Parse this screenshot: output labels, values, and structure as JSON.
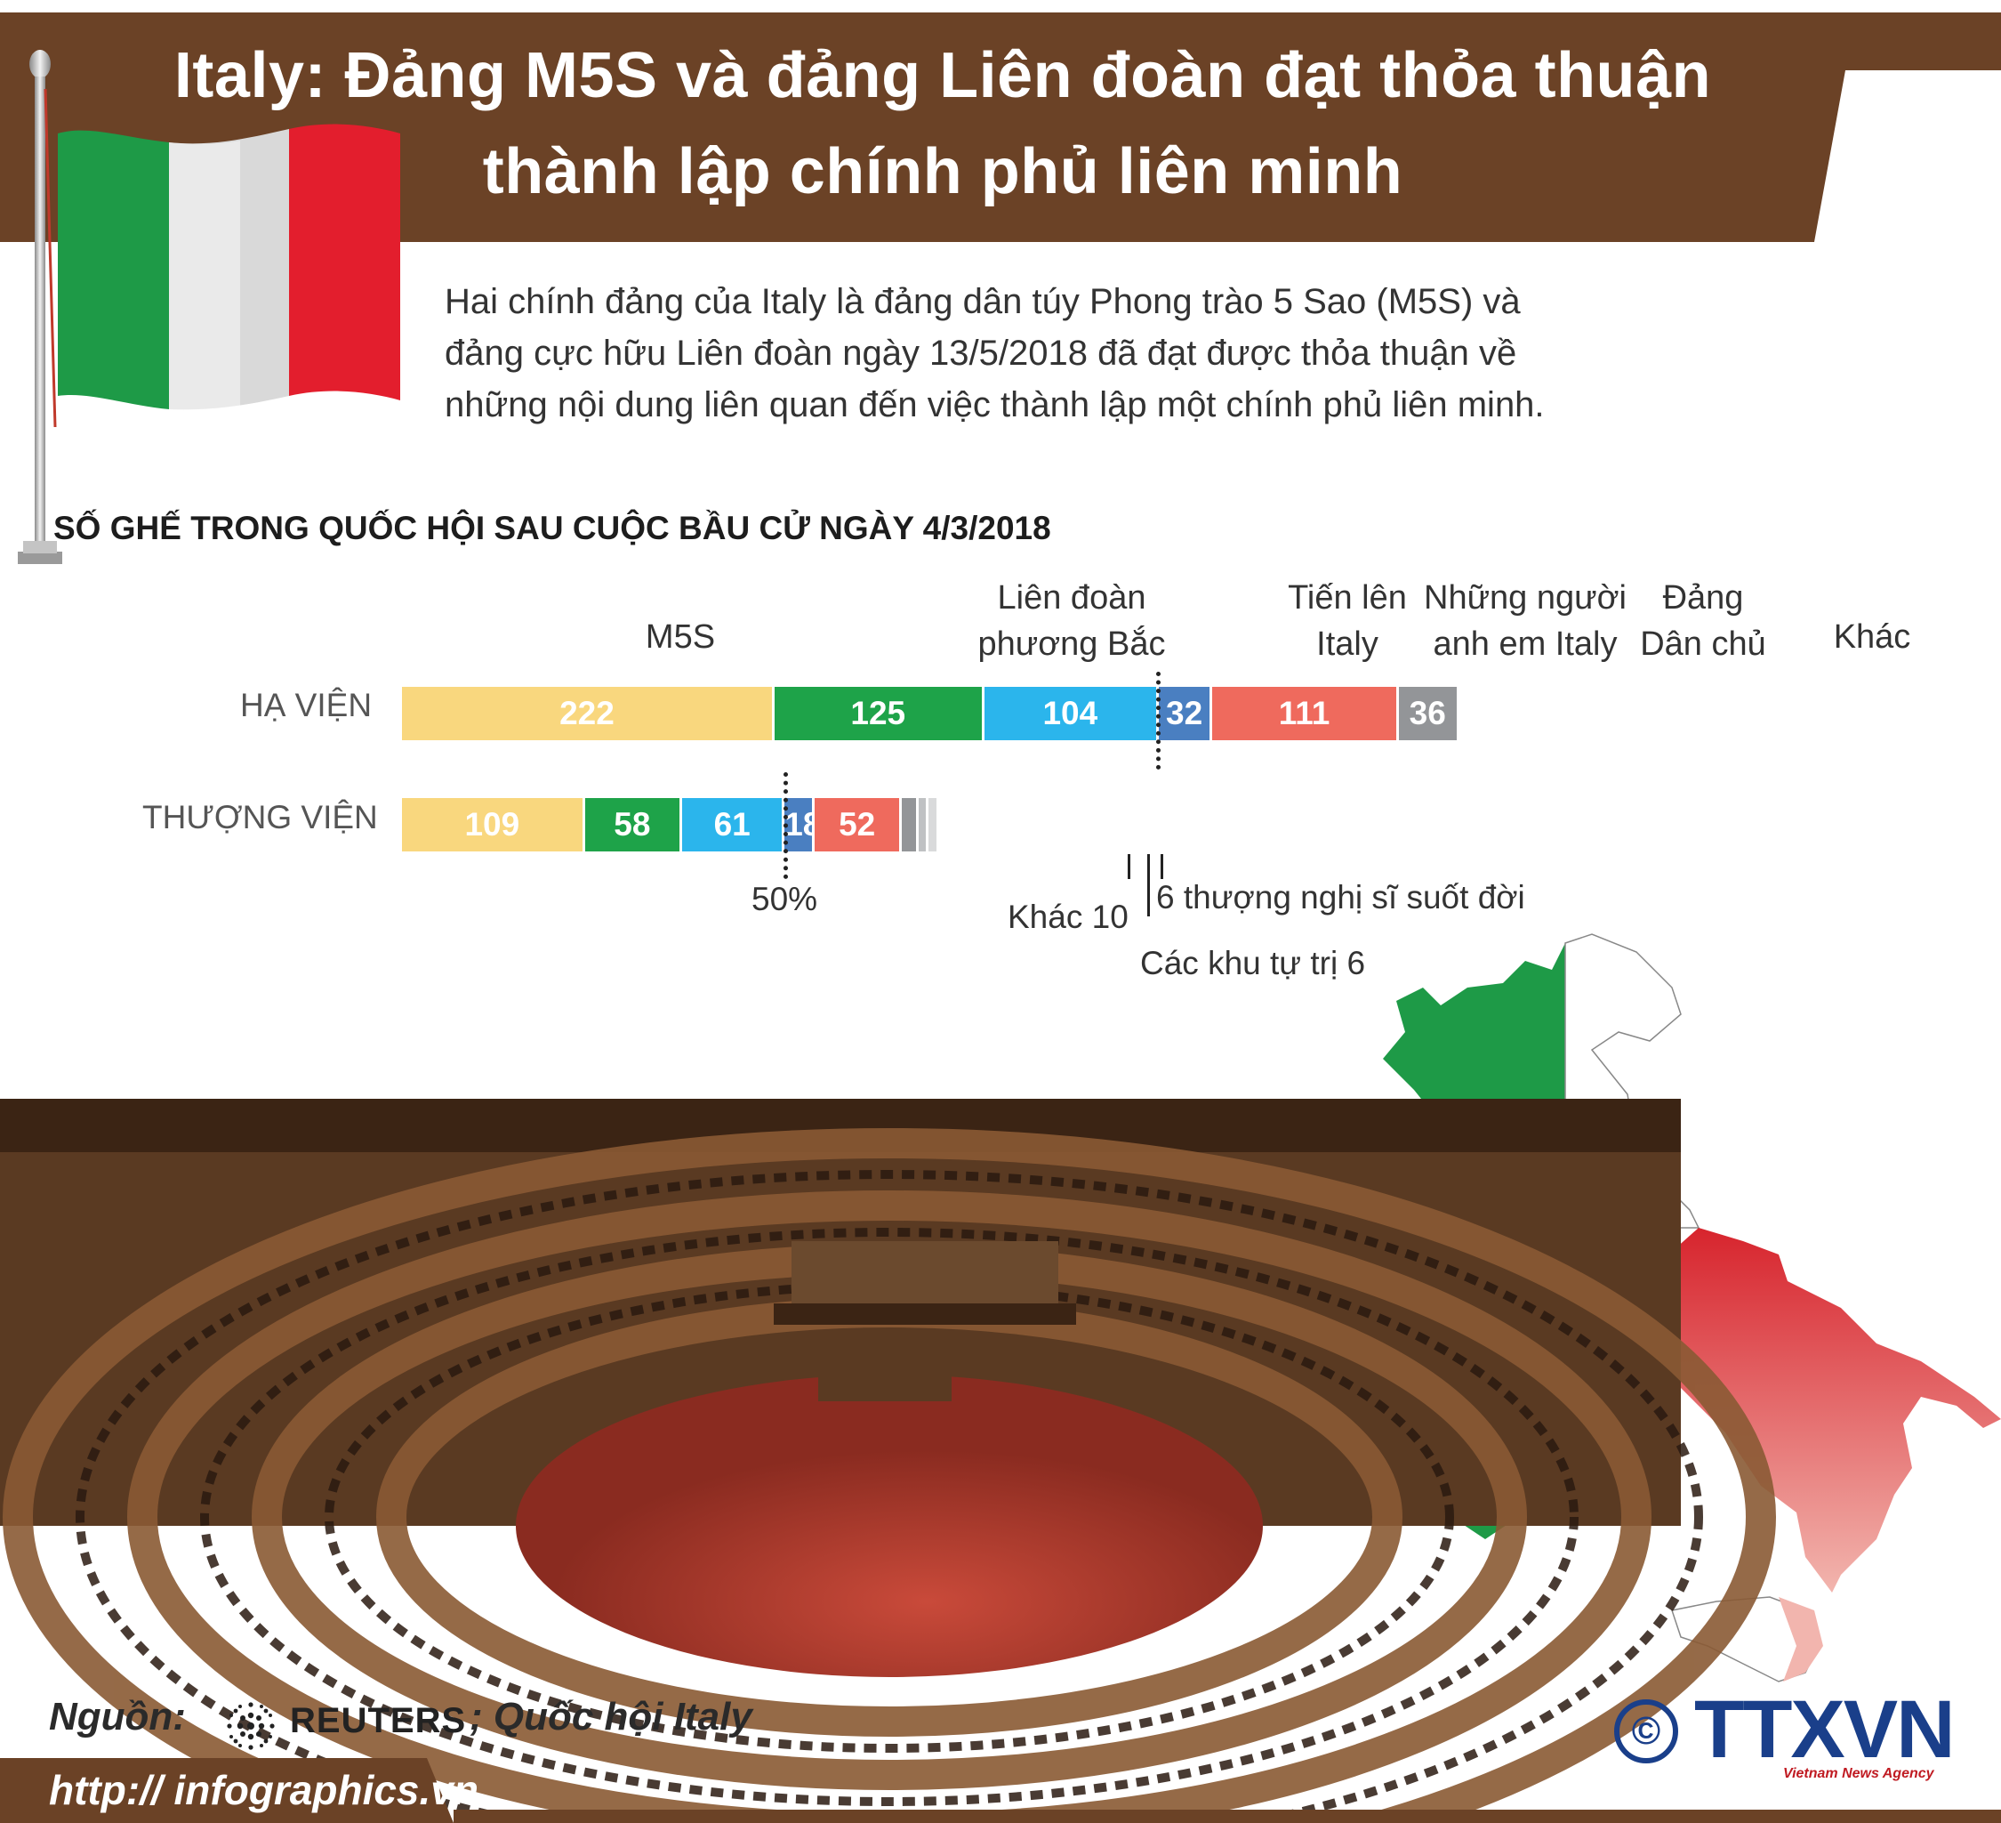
{
  "header": {
    "title_line1": "Italy: Đảng M5S và đảng Liên đoàn đạt thỏa thuận",
    "title_line2": "thành lập chính phủ liên minh"
  },
  "intro": {
    "line1": "Hai chính đảng của Italy là đảng dân túy Phong trào 5 Sao (M5S) và",
    "line2": "đảng cực hữu Liên đoàn ngày 13/5/2018 đã đạt được thỏa thuận về",
    "line3": "những nội dung liên quan đến việc thành lập một chính phủ liên minh."
  },
  "chart_data": {
    "type": "bar",
    "orientation": "horizontal-stacked",
    "title": "SỐ GHẾ TRONG QUỐC HỘI SAU CUỘC BẦU CỬ NGÀY 4/3/2018",
    "categories": [
      "HẠ VIỆN",
      "THƯỢNG VIỆN"
    ],
    "series": [
      {
        "name": "M5S",
        "color": "#f9d77e",
        "values": [
          222,
          109
        ]
      },
      {
        "name": "Liên đoàn phương Bắc",
        "color": "#1ea349",
        "values": [
          125,
          58
        ]
      },
      {
        "name": "Tiến lên Italy",
        "color": "#2bb5ec",
        "values": [
          104,
          61
        ]
      },
      {
        "name": "Những người anh em Italy",
        "color": "#4a7fc1",
        "values": [
          32,
          18
        ]
      },
      {
        "name": "Đảng Dân chủ",
        "color": "#ef6a5d",
        "values": [
          111,
          52
        ]
      },
      {
        "name": "Khác",
        "color": "#939598",
        "values": [
          36,
          10
        ]
      }
    ],
    "extra_senate": [
      {
        "name": "Các khu tự trị",
        "value": 6,
        "color": "#bfc1c3"
      },
      {
        "name": "thượng nghị sĩ suốt đời",
        "value": 6,
        "color": "#d9dadb"
      }
    ],
    "legend_labels": {
      "m5s": "M5S",
      "lega_1": "Liên đoàn",
      "lega_2": "phương Bắc",
      "fi_1": "Tiến lên",
      "fi_2": "Italy",
      "fdi_1": "Những người",
      "fdi_2": "anh em Italy",
      "pd_1": "Đảng",
      "pd_2": "Dân chủ",
      "other": "Khác"
    },
    "annotations": {
      "majority": "50%",
      "senate_other": "Khác 10",
      "senate_life": "6 thượng nghị sĩ suốt đời",
      "senate_regions": "Các khu tự trị 6"
    },
    "legend": "labels above bars"
  },
  "footer": {
    "source_label": "Nguồn:",
    "reuters": "REUTERS",
    "source_extra": "; Quốc hội Italy",
    "url": "http:// infographics.vn",
    "agency": "TTXVN",
    "agency_sub": "Vietnam News Agency",
    "copyright": "©"
  },
  "colors": {
    "banner": "#6b4226",
    "green": "#1e9a47",
    "white": "#ffffff",
    "red": "#d7242d",
    "brand_blue": "#1a3f8a"
  }
}
